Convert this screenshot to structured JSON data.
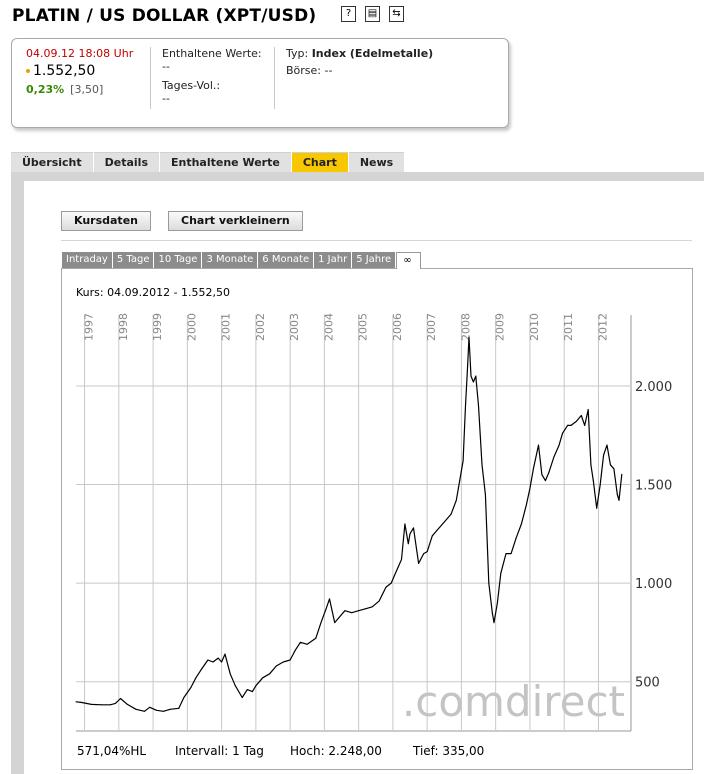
{
  "header": {
    "title": "PLATIN / US DOLLAR (XPT/USD)",
    "icons": [
      "help-icon",
      "print-icon",
      "switch-icon"
    ],
    "icon_glyphs": [
      "?",
      "▤",
      "⇆"
    ]
  },
  "quote": {
    "datetime": "04.09.12  18:08 Uhr",
    "price": "1.552,50",
    "change_pct": "0,23%",
    "change_abs": "[3,50]",
    "enthaltene_label": "Enthaltene Werte:",
    "enthaltene_value": "--",
    "volume_label": "Tages-Vol.:",
    "volume_value": "--",
    "typ_label": "Typ:",
    "typ_value": "Index (Edelmetalle)",
    "boerse_label": "Börse:",
    "boerse_value": "--",
    "colors": {
      "datetime": "#c00000",
      "positive": "#3a8a00",
      "dot": "#e7a400"
    }
  },
  "tabs": [
    {
      "label": "Übersicht",
      "active": false
    },
    {
      "label": "Details",
      "active": false
    },
    {
      "label": "Enthaltene Werte",
      "active": false
    },
    {
      "label": "Chart",
      "active": true
    },
    {
      "label": "News",
      "active": false
    }
  ],
  "buttons": {
    "kursdaten": "Kursdaten",
    "verkleinern": "Chart verkleinern"
  },
  "range_tabs": [
    {
      "label": "Intraday",
      "active": false
    },
    {
      "label": "5 Tage",
      "active": false
    },
    {
      "label": "10 Tage",
      "active": false
    },
    {
      "label": "3 Monate",
      "active": false
    },
    {
      "label": "6 Monate",
      "active": false
    },
    {
      "label": "1 Jahr",
      "active": false
    },
    {
      "label": "5 Jahre",
      "active": false
    },
    {
      "label": "∞",
      "active": true
    }
  ],
  "kurs_text": "Kurs: 04.09.2012 - 1.552,50",
  "watermark": ".comdirect",
  "footer": {
    "hl": "571,04%HL",
    "intervall": "Intervall: 1 Tag",
    "hoch": "Hoch:  2.248,00",
    "tief": "Tief:   335,00"
  },
  "chart_data": {
    "type": "line",
    "title": "",
    "xlabel": "",
    "ylabel": "",
    "x_ticks": [
      "1997",
      "1998",
      "1999",
      "2000",
      "2001",
      "2002",
      "2003",
      "2004",
      "2005",
      "2006",
      "2007",
      "2008",
      "2009",
      "2010",
      "2011",
      "2012"
    ],
    "y_ticks": [
      "500",
      "1.000",
      "1.500",
      "2.000"
    ],
    "y_tick_values": [
      500,
      1000,
      1500,
      2000
    ],
    "xlim": [
      1996.75,
      2012.95
    ],
    "ylim": [
      250,
      2360
    ],
    "grid": true,
    "y_axis_side": "right",
    "line_color": "#000000",
    "series": [
      {
        "x": [
          1996.75,
          1996.9,
          1997.2,
          1997.5,
          1997.75,
          1997.9,
          1998.05,
          1998.25,
          1998.5,
          1998.75,
          1998.9,
          1999.1,
          1999.3,
          1999.5,
          1999.75,
          1999.9,
          2000.1,
          2000.25,
          2000.4,
          2000.6,
          2000.75,
          2000.9,
          2001.0,
          2001.1,
          2001.25,
          2001.4,
          2001.6,
          2001.75,
          2001.9,
          2002.0,
          2002.2,
          2002.4,
          2002.6,
          2002.8,
          2003.0,
          2003.15,
          2003.3,
          2003.5,
          2003.75,
          2003.9,
          2004.05,
          2004.15,
          2004.3,
          2004.45,
          2004.6,
          2004.8,
          2005.0,
          2005.2,
          2005.4,
          2005.6,
          2005.8,
          2005.95,
          2006.1,
          2006.25,
          2006.35,
          2006.45,
          2006.5,
          2006.6,
          2006.75,
          2006.9,
          2007.0,
          2007.15,
          2007.3,
          2007.5,
          2007.7,
          2007.85,
          2007.95,
          2008.05,
          2008.12,
          2008.18,
          2008.22,
          2008.28,
          2008.35,
          2008.42,
          2008.5,
          2008.6,
          2008.7,
          2008.8,
          2008.9,
          2008.95,
          2009.05,
          2009.15,
          2009.3,
          2009.45,
          2009.6,
          2009.75,
          2009.9,
          2010.0,
          2010.1,
          2010.25,
          2010.35,
          2010.45,
          2010.55,
          2010.7,
          2010.85,
          2010.95,
          2011.1,
          2011.2,
          2011.35,
          2011.5,
          2011.6,
          2011.7,
          2011.78,
          2011.85,
          2011.95,
          2012.05,
          2012.15,
          2012.25,
          2012.35,
          2012.45,
          2012.55,
          2012.6,
          2012.68
        ],
        "y": [
          398,
          395,
          385,
          383,
          383,
          390,
          415,
          385,
          360,
          350,
          370,
          355,
          350,
          360,
          365,
          420,
          470,
          520,
          560,
          610,
          600,
          620,
          600,
          640,
          540,
          480,
          420,
          460,
          450,
          480,
          520,
          540,
          580,
          600,
          610,
          660,
          700,
          690,
          720,
          800,
          870,
          920,
          800,
          830,
          860,
          850,
          860,
          870,
          880,
          910,
          980,
          1000,
          1060,
          1120,
          1300,
          1200,
          1250,
          1280,
          1100,
          1150,
          1160,
          1240,
          1270,
          1310,
          1350,
          1420,
          1520,
          1620,
          1900,
          2100,
          2248,
          2050,
          2020,
          2050,
          1900,
          1600,
          1450,
          1000,
          850,
          800,
          900,
          1050,
          1150,
          1150,
          1230,
          1300,
          1400,
          1480,
          1580,
          1700,
          1550,
          1520,
          1560,
          1640,
          1700,
          1760,
          1800,
          1800,
          1820,
          1850,
          1800,
          1880,
          1600,
          1520,
          1380,
          1500,
          1650,
          1700,
          1600,
          1580,
          1450,
          1420,
          1552
        ]
      }
    ]
  }
}
